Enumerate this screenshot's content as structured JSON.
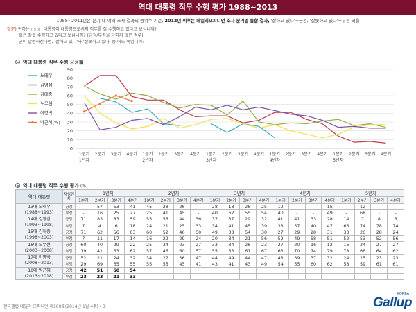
{
  "header": {
    "title": "역대 대통령 직무 수행 평가 1988~2013"
  },
  "subtitle": {
    "part1": "1988~2011년은 분기 내 여러 조사 결과의 중위수 기준,",
    "part2": "2012년 이후는 데일리오피니언 조사 분기별 통합 결과,",
    "part3": "'잘하고 있다'=긍정, '잘못하고 있다'=부정 비율"
  },
  "question": {
    "label": "질문)",
    "line1": "귀하는 ○○○ 대통령이 대통령으로서의 직무를 잘 수행하고 있다고 보십니까?",
    "line2": "혹은 잘못 수행하고 있다고 보십니까? (긍정/부정을 답하지 않은 경우)",
    "line3": "굳이 말씀하신다면, '잘하고 있다'와 '잘못하고 있다' 중 어느 쪽입니까?"
  },
  "chart_section_title": "역대 대통령 직무 수행 긍정률",
  "table_section_title": "역대 대통령 직무 수행 평가",
  "table_section_unit": "(%)",
  "chart_data": {
    "type": "line",
    "categories": [
      "1분기",
      "2분기",
      "3분기",
      "4분기",
      "1분기",
      "2분기",
      "3분기",
      "4분기",
      "1분기",
      "2분기",
      "3분기",
      "4분기",
      "1분기",
      "2분기",
      "3분기",
      "4분기",
      "1분기",
      "2분기",
      "3분기",
      "4분기"
    ],
    "year_labels": [
      {
        "index": 0,
        "label": "1년차"
      },
      {
        "index": 4,
        "label": "2년차"
      },
      {
        "index": 8,
        "label": "3년차"
      },
      {
        "index": 12,
        "label": "4년차"
      },
      {
        "index": 16,
        "label": "5년차"
      }
    ],
    "ylim": [
      0,
      90
    ],
    "yticks": [
      0,
      10,
      20,
      30,
      40,
      50,
      60,
      70,
      80,
      90
    ],
    "series": [
      {
        "name": "노태우",
        "color": "#3aa8c1",
        "marker": false,
        "values": [
          null,
          57,
          53,
          41,
          45,
          28,
          26,
          null,
          28,
          18,
          28,
          25,
          12,
          null,
          null,
          15,
          null,
          12,
          null,
          null
        ]
      },
      {
        "name": "김영삼",
        "color": "#c0394f",
        "marker": false,
        "values": [
          71,
          83,
          83,
          59,
          55,
          55,
          44,
          36,
          37,
          37,
          29,
          32,
          41,
          41,
          33,
          28,
          14,
          7,
          8,
          6
        ]
      },
      {
        "name": "김대중",
        "color": "#8eae3e",
        "marker": false,
        "values": [
          71,
          62,
          56,
          63,
          60,
          52,
          46,
          50,
          49,
          38,
          54,
          30,
          27,
          29,
          28,
          31,
          33,
          26,
          28,
          24
        ]
      },
      {
        "name": "노무현",
        "color": "#f2df4a",
        "marker": false,
        "values": [
          60,
          40,
          29,
          22,
          25,
          34,
          23,
          27,
          33,
          34,
          28,
          23,
          27,
          20,
          16,
          12,
          16,
          24,
          27,
          27
        ]
      },
      {
        "name": "이명박",
        "color": "#7b52a8",
        "marker": false,
        "values": [
          52,
          21,
          24,
          32,
          34,
          27,
          36,
          47,
          44,
          49,
          44,
          47,
          43,
          39,
          37,
          32,
          24,
          25,
          23,
          23
        ]
      },
      {
        "name": "박근혜(%)",
        "color": "#e8743b",
        "marker": true,
        "values": [
          42,
          51,
          60,
          54,
          null,
          null,
          null,
          null,
          null,
          null,
          null,
          null,
          null,
          null,
          null,
          null,
          null,
          null,
          null,
          null
        ]
      }
    ],
    "legend_position": "left",
    "grid": true
  },
  "table": {
    "col_label": "역대 대통령",
    "col_kind": "재임연차",
    "years": [
      "1년차",
      "2년차",
      "3년차",
      "4년차",
      "5년차"
    ],
    "quarters": [
      "1분기",
      "2분기",
      "3분기",
      "4분기"
    ],
    "rows": [
      {
        "name": "13대 노태우",
        "term": "(1988~1993)",
        "bold": false,
        "pos_label": "긍정",
        "neg_label": "부정",
        "pos": [
          "-",
          "57",
          "53",
          "41",
          "45",
          "28",
          "26",
          "-",
          "28",
          "18",
          "28",
          "25",
          "12",
          "-",
          "-",
          "15",
          "-",
          "12",
          "-",
          "-"
        ],
        "neg": [
          "-",
          "16",
          "25",
          "27",
          "25",
          "41",
          "45",
          "-",
          "40",
          "62",
          "55",
          "54",
          "40",
          "-",
          "-",
          "49",
          "-",
          "68",
          "-",
          "-"
        ]
      },
      {
        "name": "14대 김영삼",
        "term": "(1993~1998)",
        "bold": false,
        "pos_label": "긍정",
        "neg_label": "부정",
        "pos": [
          "71",
          "83",
          "83",
          "59",
          "55",
          "55",
          "44",
          "36",
          "37",
          "37",
          "29",
          "32",
          "41",
          "41",
          "33",
          "28",
          "14",
          "7",
          "8",
          "6"
        ],
        "neg": [
          "7",
          "4",
          "6",
          "18",
          "24",
          "21",
          "25",
          "33",
          "34",
          "41",
          "45",
          "39",
          "33",
          "37",
          "40",
          "47",
          "65",
          "74",
          "78",
          "74"
        ]
      },
      {
        "name": "15대 김대중",
        "term": "(1998~2003)",
        "bold": false,
        "pos_label": "긍정",
        "neg_label": "부정",
        "pos": [
          "71",
          "62",
          "56",
          "63",
          "60",
          "52",
          "46",
          "50",
          "49",
          "38",
          "54",
          "30",
          "27",
          "29",
          "28",
          "31",
          "33",
          "26",
          "28",
          "24"
        ],
        "neg": [
          "7",
          "11",
          "17",
          "14",
          "16",
          "22",
          "29",
          "24",
          "20",
          "34",
          "21",
          "56",
          "52",
          "49",
          "58",
          "51",
          "52",
          "53",
          "52",
          "56"
        ]
      },
      {
        "name": "16대 노무현",
        "term": "(2003~2008)",
        "bold": false,
        "pos_label": "긍정",
        "neg_label": "부정",
        "pos": [
          "60",
          "40",
          "29",
          "22",
          "25",
          "34",
          "23",
          "27",
          "33",
          "34",
          "28",
          "23",
          "27",
          "20",
          "16",
          "12",
          "16",
          "24",
          "27",
          "27"
        ],
        "neg": [
          "19",
          "41",
          "53",
          "62",
          "57",
          "46",
          "60",
          "57",
          "55",
          "53",
          "61",
          "67",
          "63",
          "70",
          "74",
          "79",
          "78",
          "66",
          "64",
          "62"
        ]
      },
      {
        "name": "17대 이명박",
        "term": "(2008~2013)",
        "bold": false,
        "pos_label": "긍정",
        "neg_label": "부정",
        "pos": [
          "52",
          "21",
          "24",
          "32",
          "34",
          "27",
          "36",
          "47",
          "44",
          "49",
          "44",
          "47",
          "43",
          "39",
          "37",
          "32",
          "24",
          "25",
          "23",
          "23"
        ],
        "neg": [
          "29",
          "69",
          "65",
          "55",
          "55",
          "55",
          "45",
          "41",
          "43",
          "41",
          "43",
          "49",
          "54",
          "55",
          "60",
          "62",
          "58",
          "59",
          "61",
          "61"
        ]
      },
      {
        "name": "18대 박근혜",
        "term": "(2013~2018)",
        "bold": true,
        "pos_label": "긍정",
        "neg_label": "부정",
        "pos": [
          "42",
          "51",
          "60",
          "54",
          "",
          "",
          "",
          "",
          "",
          "",
          "",
          "",
          "",
          "",
          "",
          "",
          "",
          "",
          "",
          ""
        ],
        "neg": [
          "23",
          "23",
          "21",
          "33",
          "",
          "",
          "",
          "",
          "",
          "",
          "",
          "",
          "",
          "",
          "",
          "",
          "",
          "",
          "",
          ""
        ]
      }
    ]
  },
  "footer": {
    "note": "한국갤럽 데일리 오피니언 제100호(2014년 1월 4주) - 3"
  },
  "logo": {
    "text": "Gallup",
    "sub": "KOREA"
  }
}
